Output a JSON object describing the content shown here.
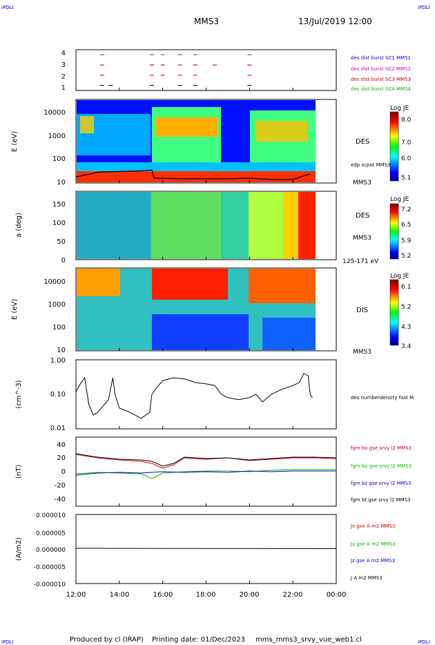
{
  "header": {
    "logo_left": "IPDLI",
    "logo_right": "IPDLI",
    "spacecraft": "MMS3",
    "datetime": "13/Jul/2019 12:00"
  },
  "footer": {
    "produced_by": "Produced by cl (IRAP)",
    "printing_date": "Printing date: 01/Dec/2023",
    "filename": "mms_mms3_srvy_vue_web1.cl"
  },
  "time_axis": {
    "ticks": [
      "12:00",
      "14:00",
      "16:00",
      "18:00",
      "20:00",
      "22:00",
      "00:00"
    ],
    "range_hours": [
      12,
      24
    ]
  },
  "panels": {
    "burst": {
      "ytick_labels": [
        "4",
        "3",
        "2",
        "1"
      ],
      "legend": [
        {
          "text": "des dist burst SC1 MMS1",
          "color": "#0000cc"
        },
        {
          "text": "des dist burst SC2 MMS2",
          "color": "#cc00cc"
        },
        {
          "text": "des dist burst SC3 MMS3",
          "color": "#cc0000"
        },
        {
          "text": "des dist burst SC4 MMS4",
          "color": "#00bb00"
        }
      ]
    },
    "des_energy": {
      "ylabel": "E (eV)",
      "ytick_labels": [
        "10000",
        "1000",
        "100",
        "10"
      ],
      "label_instrument": "DES",
      "label_line": "edp scpot MMS3",
      "label_sc": "MMS3",
      "colorbar_title": "Log JE",
      "colorbar_ticks": [
        "8.0",
        "7.0",
        "6.0",
        "5.1"
      ]
    },
    "des_pitch": {
      "ylabel": "a (deg)",
      "ytick_labels": [
        "150",
        "100",
        "50",
        "0"
      ],
      "label_instrument": "DES",
      "label_sc": "MMS3",
      "label_energy": "125-171 eV",
      "colorbar_title": "Log JE",
      "colorbar_ticks": [
        "7.2",
        "6.5",
        "5.9",
        "5.2"
      ]
    },
    "dis_energy": {
      "ylabel": "E (eV)",
      "ytick_labels": [
        "10000",
        "1000",
        "100",
        "10"
      ],
      "label_instrument": "DIS",
      "label_sc": "MMS3",
      "colorbar_title": "Log JE",
      "colorbar_ticks": [
        "6.1",
        "5.2",
        "4.3",
        "3.4"
      ]
    },
    "density": {
      "ylabel": "(cm^-3)",
      "ytick_labels": [
        "1.00",
        "0.10",
        "0.01"
      ],
      "legend": "des numberdensity fast M"
    },
    "bfield": {
      "ylabel": "(nT)",
      "ytick_labels": [
        "40",
        "20",
        "0",
        "-20",
        "-40"
      ],
      "legend": [
        {
          "text": "fgm bx gse srvy l2 MMS3",
          "color": "#cc0000"
        },
        {
          "text": "fgm by gse srvy l2 MMS3",
          "color": "#00bb00"
        },
        {
          "text": "fgm bz gse srvy l2 MMS3",
          "color": "#0000cc"
        },
        {
          "text": "fgm bt gse srvy l2 MMS3",
          "color": "#000000"
        }
      ]
    },
    "current": {
      "ylabel": "(A/m2)",
      "ytick_labels": [
        "0.000010",
        "0.000005",
        "0.000000",
        "-0.000005",
        "-0.000010"
      ],
      "legend": [
        {
          "text": "Jx gse A m2 MMS3",
          "color": "#cc0000"
        },
        {
          "text": "Jy gse A m2 MMS3",
          "color": "#00bb00"
        },
        {
          "text": "Jz gse A m2 MMS3",
          "color": "#0000cc"
        },
        {
          "text": "J A m2 MMS3",
          "color": "#000000"
        }
      ]
    }
  },
  "chart_data": [
    {
      "type": "scatter",
      "panel": "burst",
      "x_unit": "hours UT",
      "series": [
        {
          "name": "des dist burst SC1 MMS1",
          "y": 1,
          "x": [
            13.2,
            13.6,
            15.5,
            16.8,
            17.5,
            20.0
          ]
        },
        {
          "name": "des dist burst SC2 MMS2",
          "y": 2,
          "x": [
            13.2,
            15.5,
            16.0,
            16.8,
            17.5,
            20.0
          ]
        },
        {
          "name": "des dist burst SC3 MMS3",
          "y": 3,
          "x": [
            13.2,
            15.5,
            16.0,
            16.8,
            17.5,
            18.4,
            20.0
          ]
        },
        {
          "name": "des dist burst SC4 MMS4",
          "y": 4,
          "x": [
            13.2,
            15.5,
            16.0,
            16.8,
            17.5,
            20.0
          ]
        }
      ],
      "ylim": [
        0.5,
        4.5
      ]
    },
    {
      "type": "heatmap",
      "panel": "des_energy",
      "ylabel": "E (eV)",
      "ylim_log": [
        10,
        30000
      ],
      "zlim": [
        5.1,
        8.1
      ],
      "scpot_line_eV": [
        [
          12.0,
          18
        ],
        [
          12.5,
          22
        ],
        [
          13.0,
          28
        ],
        [
          14.0,
          30
        ],
        [
          15.0,
          32
        ],
        [
          15.5,
          35
        ],
        [
          15.6,
          16
        ],
        [
          17.0,
          15
        ],
        [
          19.0,
          15
        ],
        [
          20.0,
          16
        ],
        [
          21.0,
          14
        ],
        [
          22.0,
          14
        ],
        [
          22.8,
          24
        ]
      ]
    },
    {
      "type": "heatmap",
      "panel": "des_pitch",
      "ylabel": "a (deg)",
      "ylim": [
        0,
        180
      ],
      "zlim": [
        5.2,
        7.3
      ]
    },
    {
      "type": "heatmap",
      "panel": "dis_energy",
      "ylabel": "E (eV)",
      "ylim_log": [
        10,
        30000
      ],
      "zlim": [
        3.4,
        6.2
      ]
    },
    {
      "type": "line",
      "panel": "density",
      "scale": "log",
      "ylim": [
        0.01,
        1.0
      ],
      "series": [
        {
          "name": "des numberdensity fast M",
          "points": [
            [
              12.0,
              0.12
            ],
            [
              12.2,
              0.2
            ],
            [
              12.4,
              0.3
            ],
            [
              12.6,
              0.05
            ],
            [
              12.8,
              0.025
            ],
            [
              13.0,
              0.03
            ],
            [
              13.3,
              0.05
            ],
            [
              13.5,
              0.07
            ],
            [
              13.7,
              0.3
            ],
            [
              13.8,
              0.1
            ],
            [
              14.0,
              0.04
            ],
            [
              14.5,
              0.03
            ],
            [
              15.0,
              0.02
            ],
            [
              15.4,
              0.03
            ],
            [
              15.5,
              0.1
            ],
            [
              15.7,
              0.15
            ],
            [
              16.0,
              0.25
            ],
            [
              16.5,
              0.3
            ],
            [
              17.0,
              0.28
            ],
            [
              17.5,
              0.22
            ],
            [
              18.0,
              0.2
            ],
            [
              18.4,
              0.18
            ],
            [
              18.7,
              0.1
            ],
            [
              19.0,
              0.08
            ],
            [
              19.5,
              0.07
            ],
            [
              20.0,
              0.08
            ],
            [
              20.3,
              0.1
            ],
            [
              20.6,
              0.06
            ],
            [
              21.0,
              0.1
            ],
            [
              21.5,
              0.14
            ],
            [
              22.0,
              0.18
            ],
            [
              22.3,
              0.22
            ],
            [
              22.5,
              0.4
            ],
            [
              22.7,
              0.35
            ],
            [
              22.8,
              0.1
            ],
            [
              22.9,
              0.08
            ]
          ]
        }
      ]
    },
    {
      "type": "line",
      "panel": "bfield",
      "ylim": [
        -50,
        50
      ],
      "series": [
        {
          "name": "fgm bx gse srvy l2 MMS3",
          "points": [
            [
              12.0,
              25
            ],
            [
              13.0,
              20
            ],
            [
              14.0,
              17
            ],
            [
              15.0,
              15
            ],
            [
              15.5,
              12
            ],
            [
              16.0,
              5
            ],
            [
              16.5,
              10
            ],
            [
              17.0,
              20
            ],
            [
              18.0,
              18
            ],
            [
              19.0,
              20
            ],
            [
              20.0,
              16
            ],
            [
              21.0,
              18
            ],
            [
              22.0,
              20
            ],
            [
              23.0,
              20
            ],
            [
              24.0,
              19
            ]
          ]
        },
        {
          "name": "fgm by gse srvy l2 MMS3",
          "points": [
            [
              12.0,
              -3
            ],
            [
              13.0,
              -1
            ],
            [
              14.0,
              -2
            ],
            [
              15.0,
              -3
            ],
            [
              15.5,
              -10
            ],
            [
              16.0,
              -2
            ],
            [
              17.0,
              0
            ],
            [
              18.0,
              1
            ],
            [
              19.0,
              1
            ],
            [
              20.0,
              0
            ],
            [
              21.0,
              2
            ],
            [
              22.0,
              3
            ],
            [
              23.0,
              3
            ],
            [
              24.0,
              3
            ]
          ]
        },
        {
          "name": "fgm bz gse srvy l2 MMS3",
          "points": [
            [
              12.0,
              -5
            ],
            [
              13.0,
              -2
            ],
            [
              14.0,
              -1
            ],
            [
              15.0,
              -2
            ],
            [
              16.0,
              0
            ],
            [
              17.0,
              -1
            ],
            [
              18.0,
              0
            ],
            [
              19.0,
              -1
            ],
            [
              20.0,
              1
            ],
            [
              21.0,
              0
            ],
            [
              22.0,
              1
            ],
            [
              23.0,
              1
            ],
            [
              24.0,
              1
            ]
          ]
        },
        {
          "name": "fgm bt gse srvy l2 MMS3",
          "points": [
            [
              12.0,
              26
            ],
            [
              13.0,
              21
            ],
            [
              14.0,
              18
            ],
            [
              15.0,
              17
            ],
            [
              15.5,
              15
            ],
            [
              16.0,
              8
            ],
            [
              16.5,
              12
            ],
            [
              17.0,
              21
            ],
            [
              18.0,
              19
            ],
            [
              19.0,
              20
            ],
            [
              20.0,
              17
            ],
            [
              21.0,
              19
            ],
            [
              22.0,
              21
            ],
            [
              23.0,
              21
            ],
            [
              24.0,
              20
            ]
          ]
        }
      ]
    },
    {
      "type": "line",
      "panel": "current",
      "ylim": [
        -1e-05,
        1e-05
      ],
      "series": [
        {
          "name": "J A m2 MMS3",
          "points": [
            [
              12.0,
              2e-07
            ],
            [
              24.0,
              1e-07
            ]
          ]
        }
      ]
    }
  ]
}
